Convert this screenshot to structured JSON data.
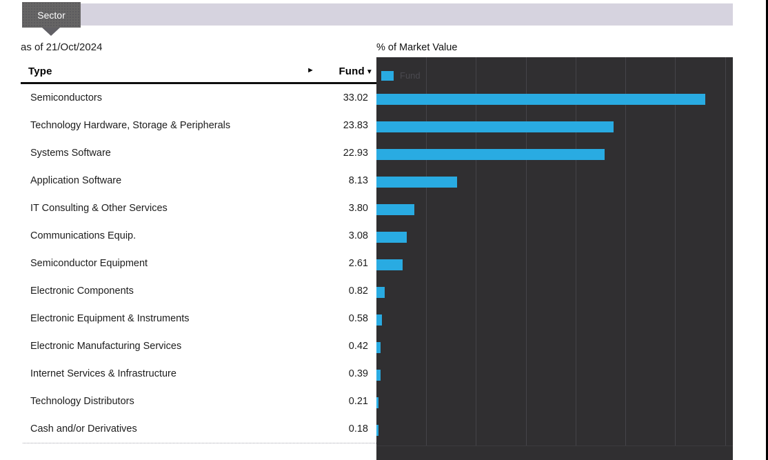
{
  "tab": {
    "label": "Sector"
  },
  "as_of": "as of 21/Oct/2024",
  "table": {
    "header": {
      "type": "Type",
      "expand_icon": "►",
      "fund": "Fund",
      "sort_icon": "▼"
    },
    "rows": [
      {
        "type": "Semiconductors",
        "fund": "33.02"
      },
      {
        "type": "Technology Hardware, Storage & Peripherals",
        "fund": "23.83"
      },
      {
        "type": "Systems Software",
        "fund": "22.93"
      },
      {
        "type": "Application Software",
        "fund": "8.13"
      },
      {
        "type": "IT Consulting & Other Services",
        "fund": "3.80"
      },
      {
        "type": "Communications Equip.",
        "fund": "3.08"
      },
      {
        "type": "Semiconductor Equipment",
        "fund": "2.61"
      },
      {
        "type": "Electronic Components",
        "fund": "0.82"
      },
      {
        "type": "Electronic Equipment & Instruments",
        "fund": "0.58"
      },
      {
        "type": "Electronic Manufacturing Services",
        "fund": "0.42"
      },
      {
        "type": "Internet Services & Infrastructure",
        "fund": "0.39"
      },
      {
        "type": "Technology Distributors",
        "fund": "0.21"
      },
      {
        "type": "Cash and/or Derivatives",
        "fund": "0.18"
      }
    ]
  },
  "chart_data": {
    "type": "bar",
    "orientation": "horizontal",
    "title": "% of Market Value",
    "categories": [
      "Semiconductors",
      "Technology Hardware, Storage & Peripherals",
      "Systems Software",
      "Application Software",
      "IT Consulting & Other Services",
      "Communications Equip.",
      "Semiconductor Equipment",
      "Electronic Components",
      "Electronic Equipment & Instruments",
      "Electronic Manufacturing Services",
      "Internet Services & Infrastructure",
      "Technology Distributors",
      "Cash and/or Derivatives"
    ],
    "series": [
      {
        "name": "Fund",
        "values": [
          33.02,
          23.83,
          22.93,
          8.13,
          3.8,
          3.08,
          2.61,
          0.82,
          0.58,
          0.42,
          0.39,
          0.21,
          0.18
        ]
      }
    ],
    "xlim": [
      0,
      35.8
    ],
    "gridline_interval": 5,
    "grid": true,
    "legend": {
      "label": "Fund",
      "position": "top-left"
    }
  },
  "colors": {
    "bar": "#29abe2",
    "chart_background": "#302f31",
    "gridline": "#454449",
    "tab_strip": "#d6d3df",
    "tab": "#666565",
    "legend_text": "#4a494f"
  }
}
